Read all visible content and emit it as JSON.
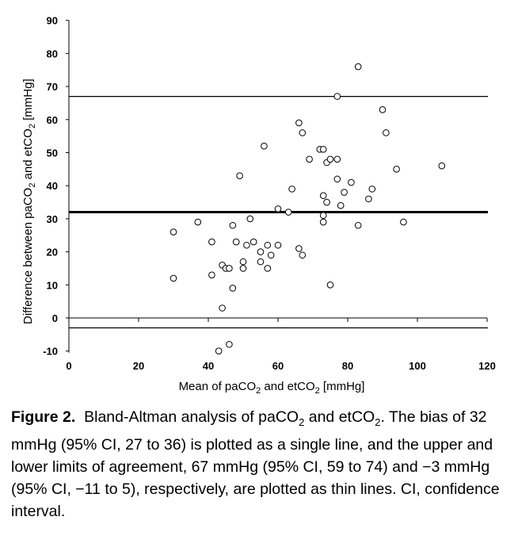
{
  "chart_data": {
    "type": "scatter",
    "xlabel_parts": [
      "Mean of paCO",
      "2",
      " and etCO",
      "2",
      " [mmHg]"
    ],
    "ylabel_parts": [
      "Difference between paCO",
      "2",
      " and etCO",
      "2",
      " [mmHg]"
    ],
    "xlim": [
      0,
      120
    ],
    "ylim": [
      -10,
      90
    ],
    "x_ticks": [
      0,
      20,
      40,
      60,
      80,
      100,
      120
    ],
    "y_ticks": [
      -10,
      0,
      10,
      20,
      30,
      40,
      50,
      60,
      70,
      80,
      90
    ],
    "grid": false,
    "marker": "open-circle",
    "reference_lines": [
      {
        "y": 67,
        "style": "thin"
      },
      {
        "y": 32,
        "style": "thick"
      },
      {
        "y": -3,
        "style": "thin"
      }
    ],
    "points": [
      [
        30,
        26
      ],
      [
        30,
        12
      ],
      [
        37,
        29
      ],
      [
        41,
        23
      ],
      [
        41,
        13
      ],
      [
        43,
        -10
      ],
      [
        44,
        16
      ],
      [
        44,
        3
      ],
      [
        45,
        15
      ],
      [
        46,
        -8
      ],
      [
        46,
        15
      ],
      [
        47,
        28
      ],
      [
        47,
        9
      ],
      [
        48,
        23
      ],
      [
        49,
        43
      ],
      [
        50,
        17
      ],
      [
        50,
        15
      ],
      [
        51,
        22
      ],
      [
        52,
        30
      ],
      [
        53,
        23
      ],
      [
        55,
        20
      ],
      [
        55,
        17
      ],
      [
        56,
        52
      ],
      [
        57,
        22
      ],
      [
        57,
        15
      ],
      [
        58,
        19
      ],
      [
        60,
        33
      ],
      [
        60,
        22
      ],
      [
        63,
        32
      ],
      [
        64,
        39
      ],
      [
        66,
        59
      ],
      [
        66,
        21
      ],
      [
        67,
        56
      ],
      [
        67,
        19
      ],
      [
        69,
        48
      ],
      [
        72,
        51
      ],
      [
        73,
        51
      ],
      [
        73,
        37
      ],
      [
        73,
        31
      ],
      [
        73,
        29
      ],
      [
        74,
        47
      ],
      [
        74,
        35
      ],
      [
        75,
        48
      ],
      [
        75,
        10
      ],
      [
        77,
        67
      ],
      [
        77,
        48
      ],
      [
        77,
        42
      ],
      [
        78,
        34
      ],
      [
        79,
        38
      ],
      [
        81,
        41
      ],
      [
        83,
        76
      ],
      [
        83,
        28
      ],
      [
        86,
        36
      ],
      [
        87,
        39
      ],
      [
        90,
        63
      ],
      [
        91,
        56
      ],
      [
        94,
        45
      ],
      [
        96,
        29
      ],
      [
        107,
        46
      ]
    ]
  },
  "caption": {
    "label": "Figure 2.",
    "parts": [
      "Bland-Altman analysis of paCO",
      "2",
      " and etCO",
      "2",
      ". The bias of 32 mmHg (95% CI, 27 to 36) is plotted as a single line, and the upper and lower limits of agreement, 67 mmHg (95% CI, 59 to 74) and −3 mmHg (95% CI, −11 to 5), respectively, are plotted as thin lines. CI, confidence interval."
    ]
  }
}
